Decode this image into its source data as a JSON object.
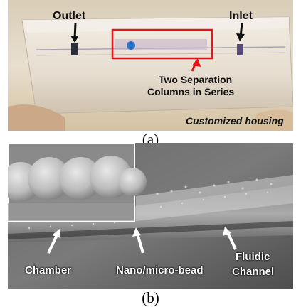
{
  "panel_a": {
    "outlet_label": "Outlet",
    "inlet_label": "Inlet",
    "highlight_label_line1": "Two Separation",
    "highlight_label_line2": "Columns in Series",
    "housing_label": "Customized housing",
    "highlight_color": "#e8141c"
  },
  "caption_a": "(a)",
  "panel_b": {
    "chamber_label": "Chamber",
    "bead_label": "Nano/micro-bead",
    "channel_label_line1": "Fluidic",
    "channel_label_line2": "Channel"
  },
  "caption_b": "(b)"
}
